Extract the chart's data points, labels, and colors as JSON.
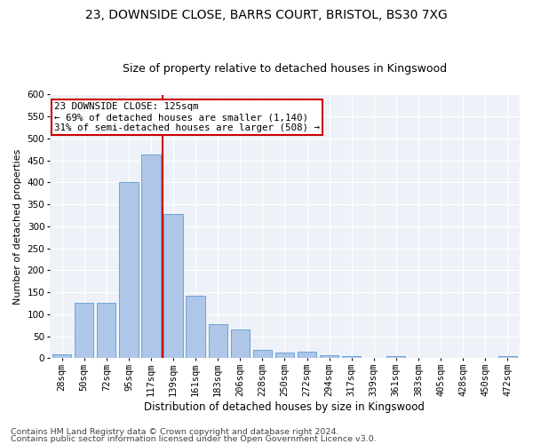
{
  "title1": "23, DOWNSIDE CLOSE, BARRS COURT, BRISTOL, BS30 7XG",
  "title2": "Size of property relative to detached houses in Kingswood",
  "xlabel": "Distribution of detached houses by size in Kingswood",
  "ylabel": "Number of detached properties",
  "categories": [
    "28sqm",
    "50sqm",
    "72sqm",
    "95sqm",
    "117sqm",
    "139sqm",
    "161sqm",
    "183sqm",
    "206sqm",
    "228sqm",
    "250sqm",
    "272sqm",
    "294sqm",
    "317sqm",
    "339sqm",
    "361sqm",
    "383sqm",
    "405sqm",
    "428sqm",
    "450sqm",
    "472sqm"
  ],
  "values": [
    8,
    127,
    127,
    400,
    463,
    328,
    143,
    78,
    65,
    18,
    12,
    15,
    7,
    5,
    0,
    4,
    0,
    0,
    0,
    0,
    4
  ],
  "bar_color": "#aec6e8",
  "bar_edge_color": "#5b9bd5",
  "vline_color": "#cc0000",
  "annotation_text": "23 DOWNSIDE CLOSE: 125sqm\n← 69% of detached houses are smaller (1,140)\n31% of semi-detached houses are larger (508) →",
  "annotation_box_color": "#ffffff",
  "annotation_box_edge": "#cc0000",
  "ylim": [
    0,
    600
  ],
  "yticks": [
    0,
    50,
    100,
    150,
    200,
    250,
    300,
    350,
    400,
    450,
    500,
    550,
    600
  ],
  "footer1": "Contains HM Land Registry data © Crown copyright and database right 2024.",
  "footer2": "Contains public sector information licensed under the Open Government Licence v3.0.",
  "bg_color": "#eef2f8",
  "fig_color": "#ffffff",
  "grid_color": "#ffffff",
  "title1_fontsize": 10,
  "title2_fontsize": 9,
  "xlabel_fontsize": 8.5,
  "ylabel_fontsize": 8,
  "tick_fontsize": 7.5,
  "annotation_fontsize": 7.8,
  "footer_fontsize": 6.8
}
